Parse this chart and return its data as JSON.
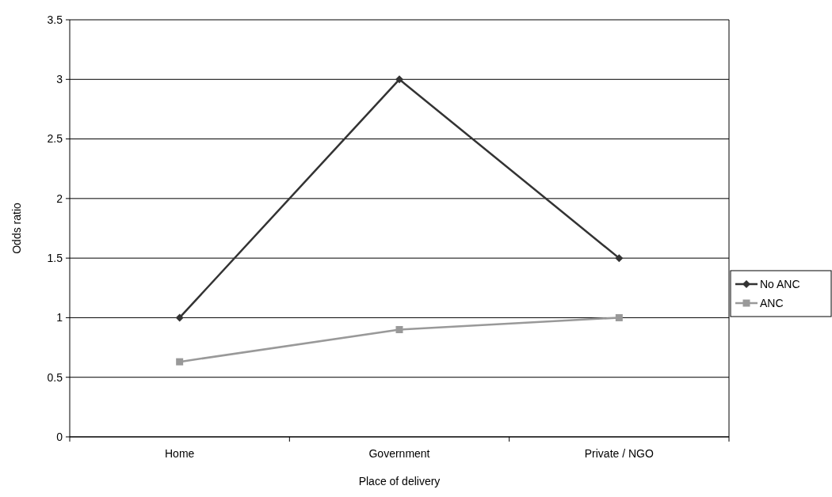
{
  "chart_data": {
    "type": "line",
    "xlabel": "Place of delivery",
    "ylabel": "Odds ratio",
    "categories": [
      "Home",
      "Government",
      "Private / NGO"
    ],
    "series": [
      {
        "name": "No ANC",
        "color": "#333333",
        "marker": "diamond",
        "values": [
          1,
          3,
          1.5
        ]
      },
      {
        "name": "ANC",
        "color": "#999999",
        "marker": "square",
        "values": [
          0.63,
          0.9,
          1
        ]
      }
    ],
    "ylim": [
      0,
      3.5
    ],
    "yticks": [
      0,
      0.5,
      1,
      1.5,
      2,
      2.5,
      3,
      3.5
    ],
    "grid": "y",
    "legend": "right"
  }
}
